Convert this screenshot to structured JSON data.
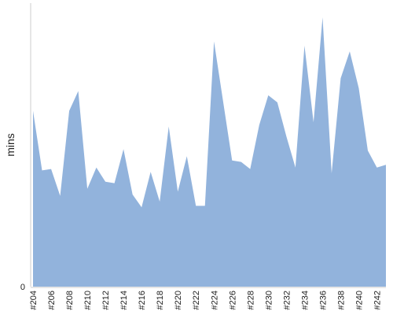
{
  "chart_data": {
    "type": "area",
    "title": "",
    "xlabel": "",
    "ylabel": "mins",
    "ylim": [
      0,
      100
    ],
    "grid": false,
    "legend": "none",
    "x": [
      "#204",
      "#205",
      "#206",
      "#207",
      "#208",
      "#209",
      "#210",
      "#211",
      "#212",
      "#213",
      "#214",
      "#215",
      "#216",
      "#217",
      "#218",
      "#219",
      "#220",
      "#221",
      "#222",
      "#223",
      "#224",
      "#225",
      "#226",
      "#227",
      "#228",
      "#229",
      "#230",
      "#231",
      "#232",
      "#233",
      "#234",
      "#235",
      "#236",
      "#237",
      "#238",
      "#239",
      "#240",
      "#241",
      "#242",
      "#243"
    ],
    "x_tick_labels": [
      "#204",
      "#206",
      "#208",
      "#210",
      "#212",
      "#214",
      "#216",
      "#218",
      "#220",
      "#222",
      "#224",
      "#226",
      "#228",
      "#230",
      "#232",
      "#234",
      "#236",
      "#238",
      "#240",
      "#242"
    ],
    "y_tick_labels": [
      "0"
    ],
    "series": [
      {
        "color": "#92b3dc",
        "values": [
          62,
          41,
          41.5,
          32,
          62,
          69,
          34.5,
          42,
          37,
          36.5,
          48.5,
          32.5,
          28,
          40.5,
          30,
          56.5,
          33.5,
          46,
          28.5,
          28.5,
          86.5,
          65.5,
          44.5,
          44,
          41.5,
          57,
          67.5,
          65,
          53,
          42,
          85,
          58,
          95,
          40,
          73.5,
          83,
          70,
          48,
          42,
          43
        ]
      }
    ]
  }
}
